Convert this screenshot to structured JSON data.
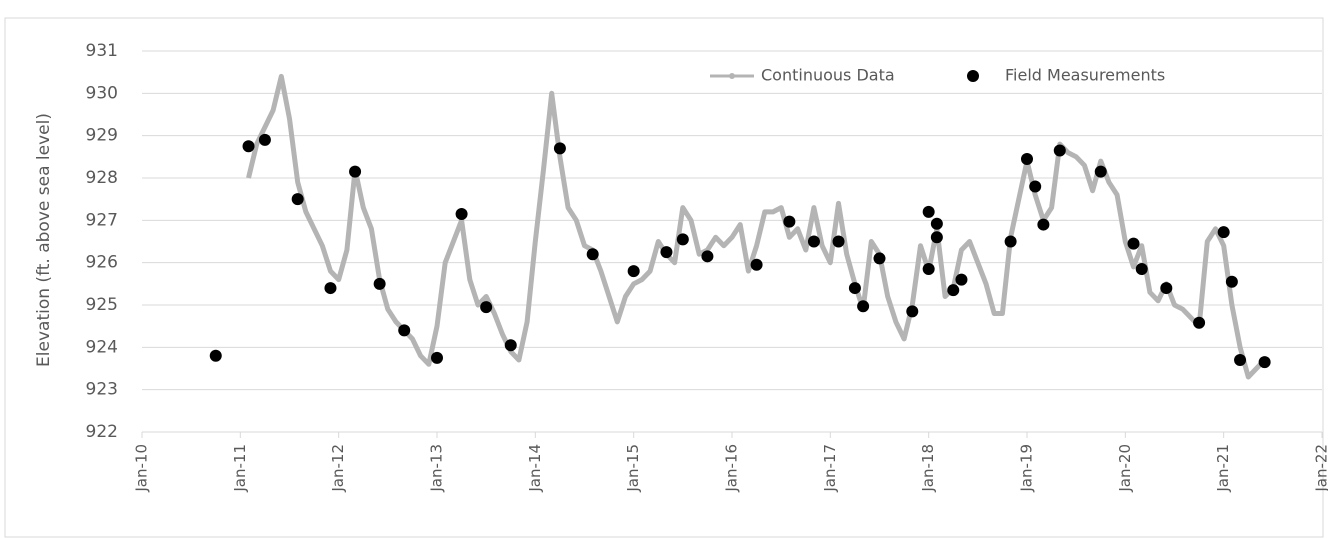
{
  "chart_data": {
    "type": "line",
    "y_label": "Elevation (ft. above sea level)",
    "ylim": [
      922,
      931
    ],
    "yticks": [
      922,
      923,
      924,
      925,
      926,
      927,
      928,
      929,
      930,
      931
    ],
    "xlim": [
      "2010-01",
      "2022-01"
    ],
    "xticks": [
      {
        "value": "2010-01",
        "label": "Jan-10"
      },
      {
        "value": "2011-01",
        "label": "Jan-11"
      },
      {
        "value": "2012-01",
        "label": "Jan-12"
      },
      {
        "value": "2013-01",
        "label": "Jan-13"
      },
      {
        "value": "2014-01",
        "label": "Jan-14"
      },
      {
        "value": "2015-01",
        "label": "Jan-15"
      },
      {
        "value": "2016-01",
        "label": "Jan-16"
      },
      {
        "value": "2017-01",
        "label": "Jan-17"
      },
      {
        "value": "2018-01",
        "label": "Jan-18"
      },
      {
        "value": "2019-01",
        "label": "Jan-19"
      },
      {
        "value": "2020-01",
        "label": "Jan-20"
      },
      {
        "value": "2021-01",
        "label": "Jan-21"
      },
      {
        "value": "2022-01",
        "label": "Jan-22"
      }
    ],
    "grid": true,
    "legend": "top",
    "series": [
      {
        "name": "Continuous Data",
        "color": "#b4b4b4",
        "style": "line",
        "x": [
          "2011-02",
          "2011-03",
          "2011-04",
          "2011-05",
          "2011-06",
          "2011-07",
          "2011-08",
          "2011-09",
          "2011-10",
          "2011-11",
          "2011-12",
          "2012-01",
          "2012-02",
          "2012-03",
          "2012-04",
          "2012-05",
          "2012-06",
          "2012-07",
          "2012-08",
          "2012-09",
          "2012-10",
          "2012-11",
          "2012-12",
          "2013-01",
          "2013-02",
          "2013-03",
          "2013-04",
          "2013-05",
          "2013-06",
          "2013-07",
          "2013-08",
          "2013-09",
          "2013-10",
          "2013-11",
          "2013-12",
          "2014-01",
          "2014-02",
          "2014-03",
          "2014-04",
          "2014-05",
          "2014-06",
          "2014-07",
          "2014-08",
          "2014-09",
          "2014-10",
          "2014-11",
          "2014-12",
          "2015-01",
          "2015-02",
          "2015-03",
          "2015-04",
          "2015-05",
          "2015-06",
          "2015-07",
          "2015-08",
          "2015-09",
          "2015-10",
          "2015-11",
          "2015-12",
          "2016-01",
          "2016-02",
          "2016-03",
          "2016-04",
          "2016-05",
          "2016-06",
          "2016-07",
          "2016-08",
          "2016-09",
          "2016-10",
          "2016-11",
          "2016-12",
          "2017-01",
          "2017-02",
          "2017-03",
          "2017-04",
          "2017-05",
          "2017-06",
          "2017-07",
          "2017-08",
          "2017-09",
          "2017-10",
          "2017-11",
          "2017-12",
          "2018-01",
          "2018-02",
          "2018-03",
          "2018-04",
          "2018-05",
          "2018-06",
          "2018-07",
          "2018-08",
          "2018-09",
          "2018-10",
          "2018-11",
          "2018-12",
          "2019-01",
          "2019-02",
          "2019-03",
          "2019-04",
          "2019-05",
          "2019-06",
          "2019-07",
          "2019-08",
          "2019-09",
          "2019-10",
          "2019-11",
          "2019-12",
          "2020-01",
          "2020-02",
          "2020-03",
          "2020-04",
          "2020-05",
          "2020-06",
          "2020-07",
          "2020-08",
          "2020-09",
          "2020-10",
          "2020-11",
          "2020-12",
          "2021-01",
          "2021-02",
          "2021-03",
          "2021-04",
          "2021-05",
          "2021-06"
        ],
        "values": [
          928.0,
          928.8,
          929.2,
          929.6,
          930.4,
          929.4,
          927.9,
          927.2,
          926.8,
          926.4,
          925.8,
          925.6,
          926.3,
          928.2,
          927.3,
          926.8,
          925.6,
          924.9,
          924.6,
          924.4,
          924.2,
          923.8,
          923.6,
          924.5,
          926.0,
          926.5,
          927.0,
          925.6,
          925.0,
          925.2,
          924.8,
          924.3,
          923.9,
          923.7,
          924.6,
          926.5,
          928.2,
          930.0,
          928.5,
          927.3,
          927.0,
          926.4,
          926.3,
          925.8,
          925.2,
          924.6,
          925.2,
          925.5,
          925.6,
          925.8,
          926.5,
          926.2,
          926.0,
          927.3,
          927.0,
          926.2,
          926.3,
          926.6,
          926.4,
          926.6,
          926.9,
          925.8,
          926.4,
          927.2,
          927.2,
          927.3,
          926.6,
          926.8,
          926.3,
          927.3,
          926.4,
          926.0,
          927.4,
          926.2,
          925.5,
          924.9,
          926.5,
          926.2,
          925.2,
          924.6,
          924.2,
          925.0,
          926.4,
          925.8,
          926.8,
          925.2,
          925.4,
          926.3,
          926.5,
          926.0,
          925.5,
          924.8,
          924.8,
          926.6,
          927.5,
          928.4,
          927.6,
          927.0,
          927.3,
          928.8,
          928.6,
          928.5,
          928.3,
          927.7,
          928.4,
          927.9,
          927.6,
          926.5,
          925.9,
          926.4,
          925.3,
          925.1,
          925.5,
          925.0,
          924.9,
          924.7,
          924.5,
          926.5,
          926.8,
          926.4,
          925.0,
          924.0,
          923.3,
          923.5,
          923.7
        ]
      },
      {
        "name": "Field Measurements",
        "color": "#000000",
        "style": "markers",
        "x": [
          "2010-10",
          "2011-02",
          "2011-04",
          "2011-08",
          "2011-12",
          "2012-03",
          "2012-06",
          "2012-09",
          "2013-01",
          "2013-04",
          "2013-07",
          "2013-10",
          "2014-04",
          "2014-08",
          "2015-01",
          "2015-05",
          "2015-07",
          "2015-10",
          "2016-04",
          "2016-08",
          "2016-11",
          "2017-02",
          "2017-04",
          "2017-05",
          "2017-07",
          "2017-11",
          "2018-01",
          "2018-01",
          "2018-02",
          "2018-02",
          "2018-04",
          "2018-05",
          "2018-11",
          "2019-01",
          "2019-02",
          "2019-03",
          "2019-05",
          "2019-10",
          "2020-02",
          "2020-03",
          "2020-06",
          "2020-10",
          "2021-01",
          "2021-02",
          "2021-03",
          "2021-06"
        ],
        "values": [
          923.8,
          928.75,
          928.9,
          927.5,
          925.4,
          928.15,
          925.5,
          924.4,
          923.75,
          927.15,
          924.95,
          924.05,
          928.7,
          926.2,
          925.8,
          926.25,
          926.55,
          926.15,
          925.95,
          926.97,
          926.5,
          926.5,
          925.4,
          924.97,
          926.1,
          924.85,
          927.2,
          925.85,
          926.92,
          926.6,
          925.35,
          925.6,
          926.5,
          928.45,
          927.8,
          926.9,
          928.65,
          928.15,
          926.45,
          925.85,
          925.4,
          924.58,
          926.72,
          925.55,
          923.7,
          923.65
        ]
      }
    ]
  }
}
